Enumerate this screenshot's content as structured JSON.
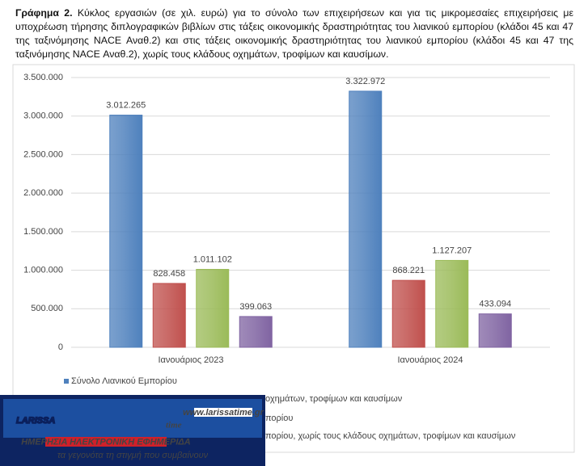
{
  "chart_data": {
    "type": "bar",
    "title": "Γράφημα 2.",
    "subtitle": "Κύκλος εργασιών (σε χιλ. ευρώ) για το σύνολο των επιχειρήσεων και για τις μικρομεσαίες επιχειρήσεις με υποχρέωση τήρησης διπλογραφικών βιβλίων στις τάξεις οικονομικής δραστηριότητας του λιανικού εμπορίου (κλάδοι 45 και 47 της ταξινόμησης NACE Αναθ.2) και στις τάξεις οικονομικής δραστηριότητας του λιανικού εμπορίου (κλάδοι 45 και 47 της ταξινόμησης NACE Αναθ.2), χωρίς τους κλάδους οχημάτων, τροφίμων και καυσίμων.",
    "categories": [
      "Ιανουάριος 2023",
      "Ιανουάριος 2024"
    ],
    "series": [
      {
        "name": "Σύνολο Λιανικού Εμπορίου",
        "color": "#4f81bd",
        "values": [
          3012265,
          3322972
        ],
        "value_labels": [
          "3.012.265",
          "3.322.972"
        ]
      },
      {
        "name": "οχημάτων, τροφίμων και καυσίμων",
        "color": "#c0504d",
        "values": [
          828458,
          868221
        ],
        "value_labels": [
          "828.458",
          "868.221"
        ]
      },
      {
        "name": "πορίου",
        "color": "#9bbb59",
        "values": [
          1011102,
          1127207
        ],
        "value_labels": [
          "1.011.102",
          "1.127.207"
        ]
      },
      {
        "name": "πορίου, χωρίς τους κλάδους οχημάτων, τροφίμων και καυσίμων",
        "color": "#8064a2",
        "values": [
          399063,
          433094
        ],
        "value_labels": [
          "399.063",
          "433.094"
        ]
      }
    ],
    "ylim": [
      0,
      3500000
    ],
    "yticks": [
      0,
      {
        "value": 500000,
        "label": "500.000"
      },
      {
        "value": 1000000,
        "label": "1.000.000"
      },
      {
        "value": 1500000,
        "label": "1.500.000"
      },
      {
        "value": 2000000,
        "label": "2.000.000"
      },
      {
        "value": 2500000,
        "label": "2.500.000"
      },
      {
        "value": 3000000,
        "label": "3.000.000"
      },
      {
        "value": 3500000,
        "label": "3.500.000"
      }
    ],
    "grid": true
  },
  "logo": {
    "brand": "LARISSA",
    "brand2": "time",
    "url": "www.larissatime.gr",
    "tagline": "ΗΜΕΡΗΣΙΑ ΗΛΕΚΤΡΟΝΙΚΗ ΕΦΗΜΕΡΙΔΑ",
    "slogan": "τα γεγονότα τη στιγμή που συμβαίνουν"
  }
}
